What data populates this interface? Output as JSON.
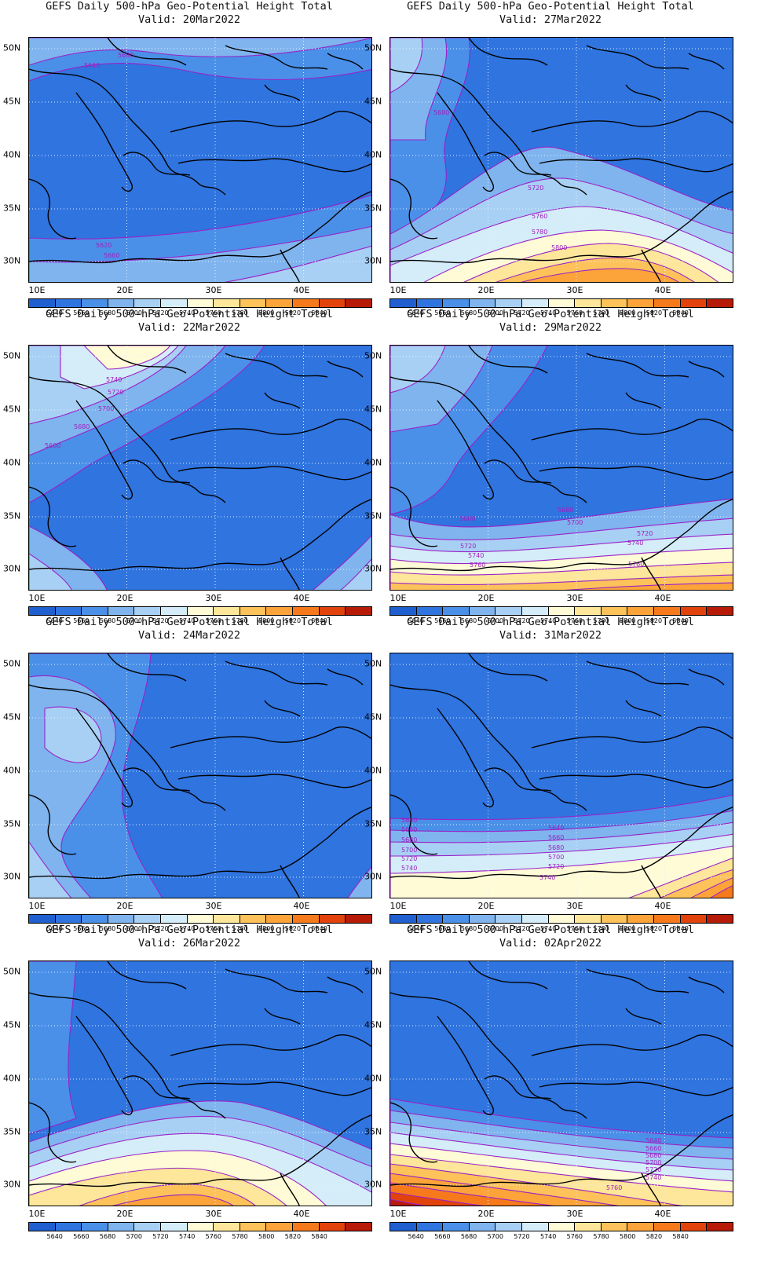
{
  "title": "GEFS Daily 500-hPa Geo-Potential Height Total",
  "lat_labels": [
    "50N",
    "45N",
    "40N",
    "35N",
    "30N"
  ],
  "lon_labels": [
    "10E",
    "20E",
    "30E",
    "40E"
  ],
  "colorbar": {
    "colors": [
      "#1f5fcf",
      "#2f74df",
      "#4a90e8",
      "#7fb4ee",
      "#a8d0f4",
      "#d4edf8",
      "#fefbd6",
      "#fee69a",
      "#fdc35a",
      "#fca33a",
      "#f67a1c",
      "#e2420c",
      "#b81a08"
    ],
    "labels": [
      "5640",
      "5660",
      "5680",
      "5700",
      "5720",
      "5740",
      "5760",
      "5780",
      "5800",
      "5820",
      "5840"
    ]
  },
  "panels": [
    {
      "valid": "Valid: 20Mar2022",
      "contour_labels": [
        "5680",
        "5640",
        "5660",
        "5620"
      ]
    },
    {
      "valid": "Valid: 27Mar2022",
      "contour_labels": [
        "5680",
        "5720",
        "5760",
        "5780",
        "5800"
      ]
    },
    {
      "valid": "Valid: 22Mar2022",
      "contour_labels": [
        "5740",
        "5720",
        "5700",
        "5680",
        "5660"
      ]
    },
    {
      "valid": "Valid: 29Mar2022",
      "contour_labels": [
        "5660",
        "5680",
        "5700",
        "5720",
        "5740",
        "5760",
        "5760",
        "5720",
        "5740"
      ]
    },
    {
      "valid": "Valid: 24Mar2022",
      "contour_labels": []
    },
    {
      "valid": "Valid: 31Mar2022",
      "contour_labels": [
        "5640",
        "5660",
        "5680",
        "5700",
        "5720",
        "5740",
        "5640",
        "5660",
        "5680",
        "5700",
        "5720",
        "5740"
      ]
    },
    {
      "valid": "Valid: 26Mar2022",
      "contour_labels": []
    },
    {
      "valid": "Valid: 02Apr2022",
      "contour_labels": [
        "5640",
        "5660",
        "5680",
        "5700",
        "5720",
        "5740",
        "5760"
      ]
    }
  ]
}
